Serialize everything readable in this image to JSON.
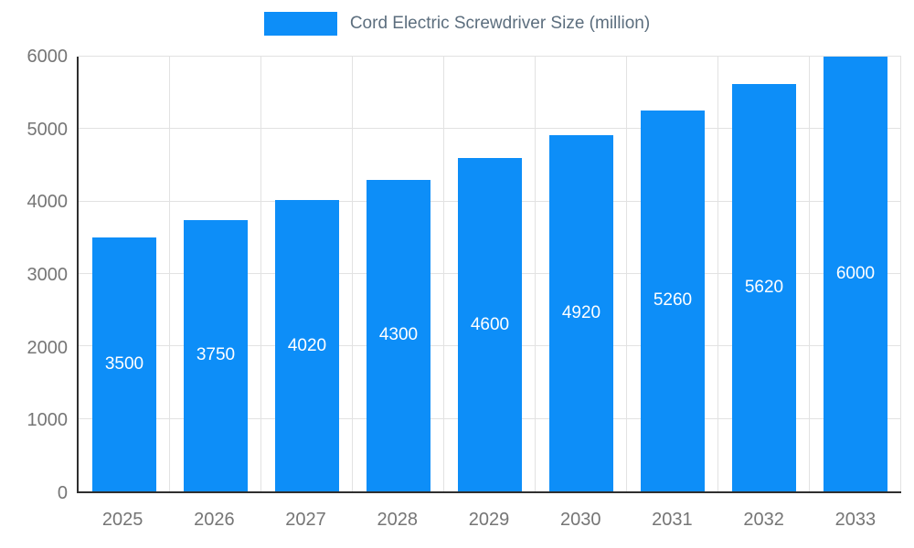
{
  "chart_data": {
    "type": "bar",
    "title": "Cord Electric Screwdriver Size (million)",
    "categories": [
      "2025",
      "2026",
      "2027",
      "2028",
      "2029",
      "2030",
      "2031",
      "2032",
      "2033"
    ],
    "values": [
      3500,
      3750,
      4020,
      4300,
      4600,
      4920,
      5260,
      5620,
      6000
    ],
    "xlabel": "",
    "ylabel": "",
    "ylim": [
      0,
      6000
    ],
    "ytick_step": 1000,
    "grid": true,
    "legend_position": "top",
    "bar_color": "#0d8ef8",
    "value_label_color": "#ffffff",
    "axis_label_color": "#757575",
    "legend_text_color": "#5c6e7e",
    "gridline_color": "#e2e2e2"
  }
}
